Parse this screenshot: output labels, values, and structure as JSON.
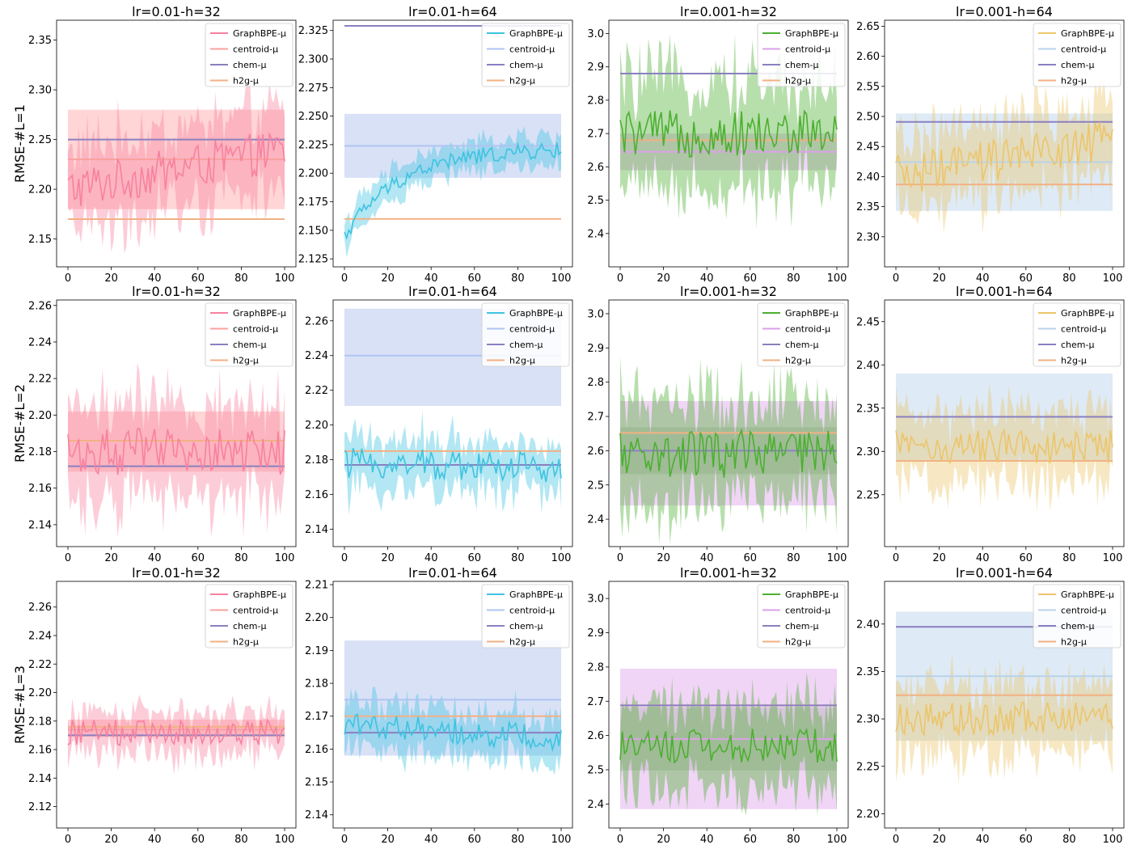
{
  "legend_entries": [
    "GraphBPE-μ",
    "centroid-μ",
    "chem-μ",
    "h2g-μ"
  ],
  "row_labels": [
    "RMSE-#L=1",
    "RMSE-#L=2",
    "RMSE-#L=3"
  ],
  "colors": {
    "column_main": [
      "#f7819f",
      "#3ec3e0",
      "#4caf30",
      "#ecc56a"
    ],
    "column_band": [
      "#ffb3b3",
      "#b9c9f0",
      "#e3b3ee",
      "#c3d8ec"
    ],
    "centroid": [
      "#f9a19e",
      "#aec4f2",
      "#dba0e8",
      "#b8d3ea"
    ],
    "chem": "#8a80c0",
    "h2g": "#f2b183",
    "gray_overlay": "#aaaaaa"
  },
  "chart_data": [
    {
      "type": "line",
      "title": "lr=0.01-h=32",
      "ylabel": "RMSE-#L=1",
      "xlim": [
        0,
        100
      ],
      "ylim": [
        2.122,
        2.37
      ],
      "yticks": [
        2.15,
        2.2,
        2.25,
        2.3,
        2.35
      ],
      "xticks": [
        0,
        20,
        40,
        60,
        80,
        100
      ],
      "graphbpe_start": 2.2,
      "graphbpe_end": 2.24,
      "graphbpe_noise": 0.022,
      "graphbpe_band": 0.04,
      "centroid_mean": 2.23,
      "centroid_band": [
        2.18,
        2.28
      ],
      "chem": 2.25,
      "h2g": 2.17
    },
    {
      "type": "line",
      "title": "lr=0.01-h=64",
      "xlim": [
        0,
        100
      ],
      "ylim": [
        2.118,
        2.334
      ],
      "yticks": [
        2.125,
        2.15,
        2.175,
        2.2,
        2.225,
        2.25,
        2.275,
        2.3,
        2.325
      ],
      "xticks": [
        0,
        20,
        40,
        60,
        80,
        100
      ],
      "graphbpe_start": 2.145,
      "graphbpe_end": 2.22,
      "graphbpe_noise": 0.007,
      "graphbpe_band": 0.012,
      "graphbpe_curve": "saturating",
      "centroid_mean": 2.224,
      "centroid_band": [
        2.196,
        2.252
      ],
      "chem": 2.329,
      "h2g": 2.16
    },
    {
      "type": "line",
      "title": "lr=0.001-h=32",
      "xlim": [
        0,
        100
      ],
      "ylim": [
        2.3,
        3.04
      ],
      "yticks": [
        2.4,
        2.5,
        2.6,
        2.7,
        2.8,
        2.9,
        3.0
      ],
      "xticks": [
        0,
        20,
        40,
        60,
        80,
        100
      ],
      "graphbpe_start": 2.7,
      "graphbpe_end": 2.7,
      "graphbpe_noise": 0.07,
      "graphbpe_band": 0.16,
      "centroid_mean": 2.645,
      "centroid_band": [
        2.59,
        2.7
      ],
      "chem": 2.88,
      "h2g": 2.68
    },
    {
      "type": "line",
      "title": "lr=0.001-h=64",
      "xlim": [
        0,
        100
      ],
      "ylim": [
        2.25,
        2.66
      ],
      "yticks": [
        2.3,
        2.35,
        2.4,
        2.45,
        2.5,
        2.55,
        2.6,
        2.65
      ],
      "xticks": [
        0,
        20,
        40,
        60,
        80,
        100
      ],
      "graphbpe_start": 2.4,
      "graphbpe_end": 2.46,
      "graphbpe_noise": 0.035,
      "graphbpe_band": 0.06,
      "centroid_mean": 2.424,
      "centroid_band": [
        2.343,
        2.505
      ],
      "chem": 2.491,
      "h2g": 2.387
    },
    {
      "type": "line",
      "title": "lr=0.01-h=32",
      "ylabel": "RMSE-#L=2",
      "xlim": [
        0,
        100
      ],
      "ylim": [
        2.128,
        2.263
      ],
      "yticks": [
        2.14,
        2.16,
        2.18,
        2.2,
        2.22,
        2.24,
        2.26
      ],
      "xticks": [
        0,
        20,
        40,
        60,
        80,
        100
      ],
      "graphbpe_start": 2.18,
      "graphbpe_end": 2.18,
      "graphbpe_noise": 0.013,
      "graphbpe_band": 0.025,
      "centroid_mean": 2.186,
      "centroid_band": [
        2.169,
        2.202
      ],
      "chem": 2.172,
      "h2g": 2.186
    },
    {
      "type": "line",
      "title": "lr=0.01-h=64",
      "xlim": [
        0,
        100
      ],
      "ylim": [
        2.13,
        2.272
      ],
      "yticks": [
        2.14,
        2.16,
        2.18,
        2.2,
        2.22,
        2.24,
        2.26
      ],
      "xticks": [
        0,
        20,
        40,
        60,
        80,
        100
      ],
      "graphbpe_start": 2.178,
      "graphbpe_end": 2.176,
      "graphbpe_noise": 0.009,
      "graphbpe_band": 0.015,
      "centroid_mean": 2.24,
      "centroid_band": [
        2.211,
        2.267
      ],
      "chem": 2.177,
      "h2g": 2.185
    },
    {
      "type": "line",
      "title": "lr=0.001-h=32",
      "xlim": [
        0,
        100
      ],
      "ylim": [
        2.32,
        3.04
      ],
      "yticks": [
        2.4,
        2.5,
        2.6,
        2.7,
        2.8,
        2.9,
        3.0
      ],
      "xticks": [
        0,
        20,
        40,
        60,
        80,
        100
      ],
      "graphbpe_start": 2.59,
      "graphbpe_end": 2.59,
      "graphbpe_noise": 0.07,
      "graphbpe_band": 0.15,
      "centroid_mean": 2.6,
      "centroid_band": [
        2.44,
        2.745
      ],
      "chem": 2.6,
      "h2g": 2.652,
      "gray_overlay": true
    },
    {
      "type": "line",
      "title": "lr=0.001-h=64",
      "xlim": [
        0,
        100
      ],
      "ylim": [
        2.19,
        2.475
      ],
      "yticks": [
        2.25,
        2.3,
        2.35,
        2.4,
        2.45
      ],
      "xticks": [
        0,
        20,
        40,
        60,
        80,
        100
      ],
      "graphbpe_start": 2.305,
      "graphbpe_end": 2.305,
      "graphbpe_noise": 0.02,
      "graphbpe_band": 0.04,
      "centroid_mean": 2.34,
      "centroid_band": [
        2.29,
        2.39
      ],
      "chem": 2.34,
      "h2g": 2.289
    },
    {
      "type": "line",
      "title": "lr=0.01-h=32",
      "ylabel": "RMSE-#L=3",
      "xlim": [
        0,
        100
      ],
      "ylim": [
        2.105,
        2.278
      ],
      "yticks": [
        2.12,
        2.14,
        2.16,
        2.18,
        2.2,
        2.22,
        2.24,
        2.26
      ],
      "xticks": [
        0,
        20,
        40,
        60,
        80,
        100
      ],
      "graphbpe_start": 2.172,
      "graphbpe_end": 2.172,
      "graphbpe_noise": 0.009,
      "graphbpe_band": 0.015,
      "centroid_mean": 2.174,
      "centroid_band": [
        2.169,
        2.181
      ],
      "chem": 2.17,
      "h2g": 2.176
    },
    {
      "type": "line",
      "title": "lr=0.01-h=64",
      "xlim": [
        0,
        100
      ],
      "ylim": [
        2.136,
        2.211
      ],
      "yticks": [
        2.14,
        2.15,
        2.16,
        2.17,
        2.18,
        2.19,
        2.2,
        2.21
      ],
      "xticks": [
        0,
        20,
        40,
        60,
        80,
        100
      ],
      "graphbpe_start": 2.168,
      "graphbpe_end": 2.163,
      "graphbpe_noise": 0.004,
      "graphbpe_band": 0.007,
      "centroid_mean": 2.175,
      "centroid_band": [
        2.158,
        2.193
      ],
      "chem": 2.165,
      "h2g": 2.17
    },
    {
      "type": "line",
      "title": "lr=0.001-h=32",
      "xlim": [
        0,
        100
      ],
      "ylim": [
        2.33,
        3.05
      ],
      "yticks": [
        2.4,
        2.5,
        2.6,
        2.7,
        2.8,
        2.9,
        3.0
      ],
      "xticks": [
        0,
        20,
        40,
        60,
        80,
        100
      ],
      "graphbpe_start": 2.57,
      "graphbpe_end": 2.57,
      "graphbpe_noise": 0.05,
      "graphbpe_band": 0.12,
      "centroid_mean": 2.59,
      "centroid_band": [
        2.385,
        2.795
      ],
      "chem": 2.688,
      "h2g": 2.688,
      "gray_overlay": true
    },
    {
      "type": "line",
      "title": "lr=0.001-h=64",
      "xlim": [
        0,
        100
      ],
      "ylim": [
        2.185,
        2.445
      ],
      "yticks": [
        2.2,
        2.25,
        2.3,
        2.35,
        2.4
      ],
      "xticks": [
        0,
        20,
        40,
        60,
        80,
        100
      ],
      "graphbpe_start": 2.3,
      "graphbpe_end": 2.3,
      "graphbpe_noise": 0.018,
      "graphbpe_band": 0.035,
      "centroid_mean": 2.345,
      "centroid_band": [
        2.277,
        2.413
      ],
      "chem": 2.397,
      "h2g": 2.325
    }
  ]
}
